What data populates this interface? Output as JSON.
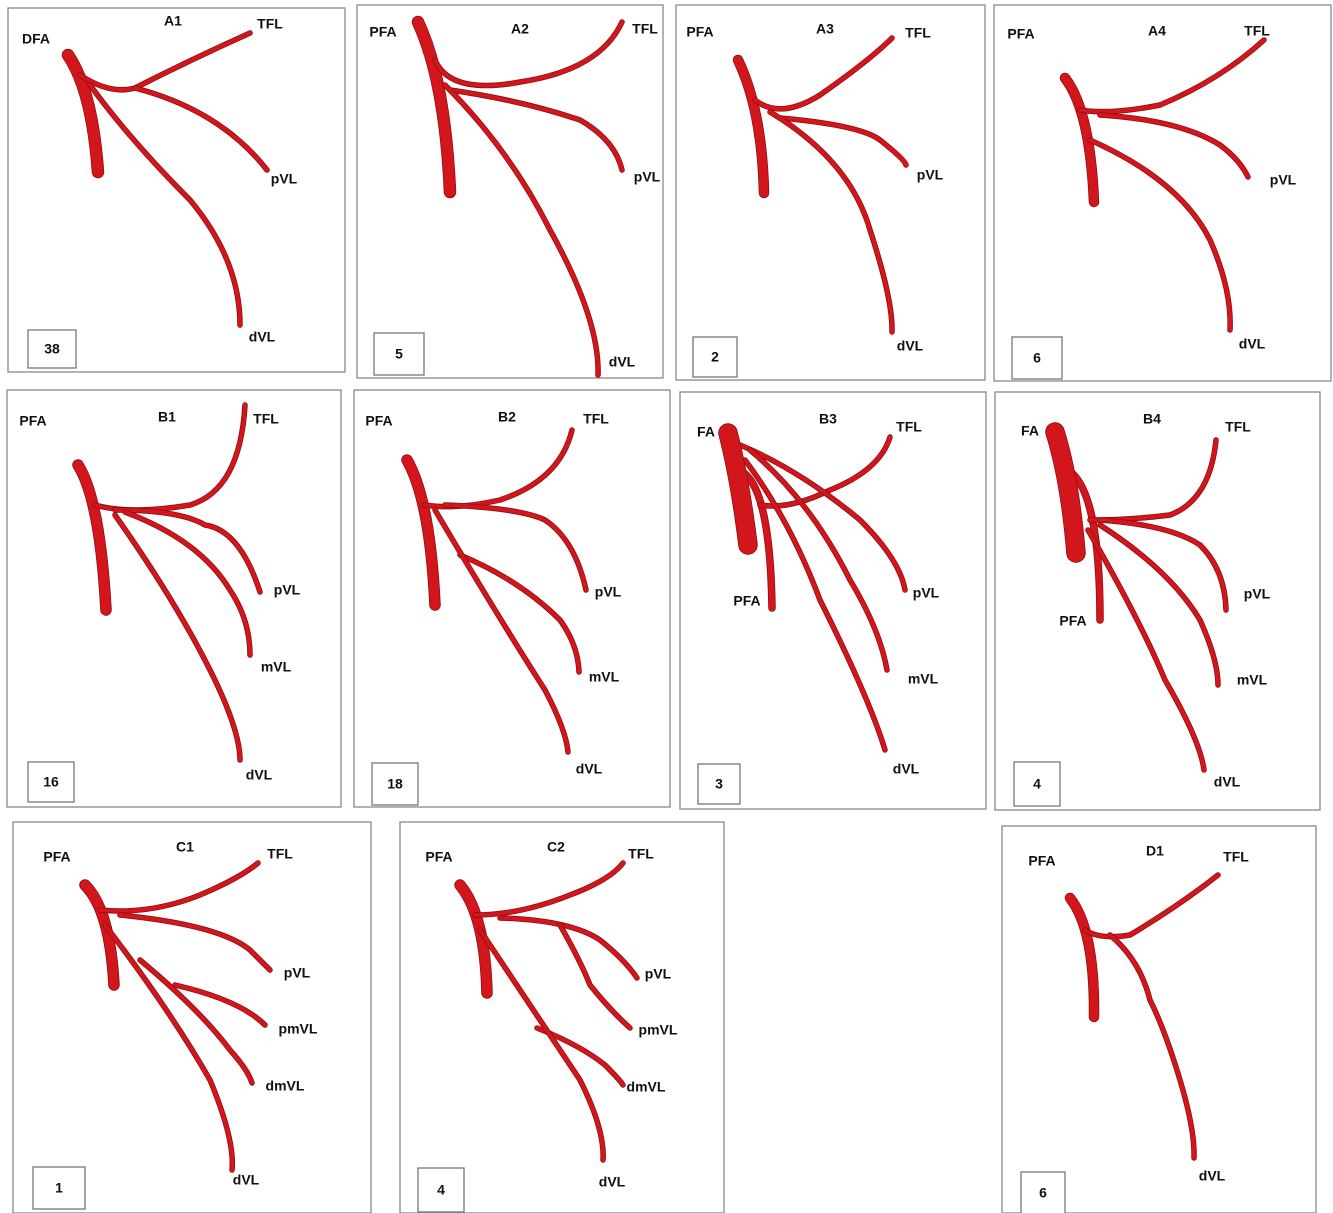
{
  "panels": [
    {
      "title": "A1",
      "count": 38,
      "labels": [
        "DFA",
        "TFL",
        "pVL",
        "dVL"
      ]
    },
    {
      "title": "A2",
      "count": 5,
      "labels": [
        "PFA",
        "TFL",
        "pVL",
        "dVL"
      ]
    },
    {
      "title": "A3",
      "count": 2,
      "labels": [
        "PFA",
        "TFL",
        "pVL",
        "dVL"
      ]
    },
    {
      "title": "A4",
      "count": 6,
      "labels": [
        "PFA",
        "TFL",
        "pVL",
        "dVL"
      ]
    },
    {
      "title": "B1",
      "count": 16,
      "labels": [
        "PFA",
        "TFL",
        "pVL",
        "mVL",
        "dVL"
      ]
    },
    {
      "title": "B2",
      "count": 18,
      "labels": [
        "PFA",
        "TFL",
        "pVL",
        "mVL",
        "dVL"
      ]
    },
    {
      "title": "B3",
      "count": 3,
      "labels": [
        "FA",
        "TFL",
        "PFA",
        "pVL",
        "mVL",
        "dVL"
      ]
    },
    {
      "title": "B4",
      "count": 4,
      "labels": [
        "FA",
        "TFL",
        "PFA",
        "pVL",
        "mVL",
        "dVL"
      ]
    },
    {
      "title": "C1",
      "count": 1,
      "labels": [
        "PFA",
        "TFL",
        "pVL",
        "pmVL",
        "dmVL",
        "dVL"
      ]
    },
    {
      "title": "C2",
      "count": 4,
      "labels": [
        "PFA",
        "TFL",
        "pVL",
        "pmVL",
        "dmVL",
        "dVL"
      ]
    },
    {
      "title": "D1",
      "count": 6,
      "labels": [
        "PFA",
        "TFL",
        "dVL"
      ]
    }
  ]
}
